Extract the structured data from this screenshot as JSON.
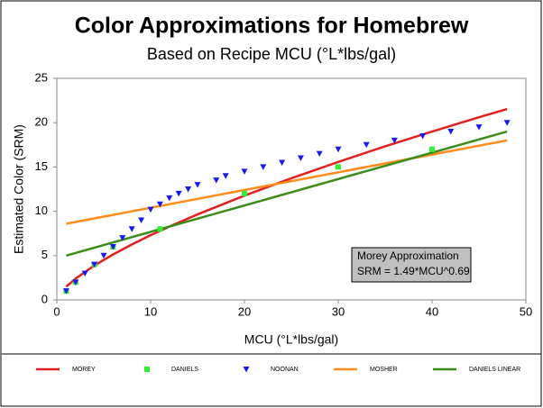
{
  "chart_data": {
    "type": "line",
    "title": "Color Approximations for Homebrew",
    "subtitle": "Based on Recipe MCU (°L*lbs/gal)",
    "x_label": "MCU (°L*lbs/gal)",
    "y_label": "Estimated Color (SRM)",
    "annotation": [
      "Morey Approximation",
      "SRM = 1.49*MCU^0.69"
    ],
    "xlim": [
      0,
      50
    ],
    "xticks": [
      0,
      10,
      20,
      30,
      40,
      50
    ],
    "ylim": [
      0,
      25
    ],
    "yticks": [
      0,
      5,
      10,
      15,
      20,
      25
    ],
    "grid": false,
    "legend": "bottom",
    "series": [
      {
        "name": "MOREY",
        "type": "line",
        "color": "#e32020",
        "x": [
          1,
          2,
          4,
          6,
          8,
          10,
          12,
          15,
          20,
          25,
          30,
          35,
          40,
          45,
          48
        ],
        "values": [
          1.49,
          2.4,
          3.88,
          5.13,
          6.26,
          7.3,
          8.28,
          9.65,
          11.77,
          13.73,
          15.57,
          17.33,
          19.0,
          20.61,
          21.54
        ]
      },
      {
        "name": "DANIELS",
        "type": "scatter",
        "marker": "square",
        "color": "#33ee33",
        "x": [
          1,
          2,
          4,
          6,
          11,
          20,
          30,
          40
        ],
        "values": [
          1,
          2,
          4,
          6,
          8,
          12,
          15,
          17
        ]
      },
      {
        "name": "NOONAN",
        "type": "scatter",
        "marker": "triangle",
        "color": "#1a1aee",
        "x": [
          1,
          2,
          3,
          4,
          5,
          6,
          7,
          8,
          9,
          10,
          11,
          12,
          13,
          14,
          15,
          17,
          18,
          20,
          22,
          24,
          26,
          28,
          30,
          33,
          36,
          39,
          42,
          45,
          48
        ],
        "values": [
          1,
          2,
          3,
          4,
          5,
          6,
          7,
          8,
          9,
          10.2,
          10.8,
          11.5,
          12,
          12.5,
          13,
          13.5,
          14,
          14.5,
          15,
          15.5,
          16,
          16.5,
          17,
          17.5,
          18,
          18.5,
          19,
          19.5,
          20
        ]
      },
      {
        "name": "MOSHER",
        "type": "line",
        "color": "#ff8c1a",
        "x": [
          1,
          48
        ],
        "values": [
          8.6,
          18
        ]
      },
      {
        "name": "DANIELS LINEAR",
        "type": "line",
        "color": "#3c8c1a",
        "x": [
          1,
          48
        ],
        "values": [
          5,
          19
        ]
      }
    ]
  }
}
